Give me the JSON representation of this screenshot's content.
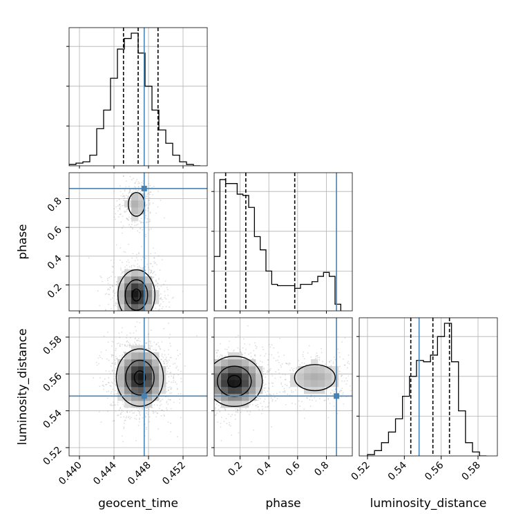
{
  "chart_data": {
    "type": "corner",
    "parameters": [
      "geocent_time",
      "phase",
      "luminosity_distance"
    ],
    "truths": {
      "geocent_time": 0.4475,
      "phase": 0.87,
      "luminosity_distance": 0.548
    },
    "colors": {
      "truth": "#4682b4",
      "hist": "#000000",
      "grid": "#b0b0b0",
      "scatter": "#9a9a9a"
    },
    "grid": true,
    "axes": {
      "geocent_time": {
        "label": "geocent_time",
        "lim": [
          0.4388,
          0.4548
        ],
        "ticks": [
          0.44,
          0.444,
          0.448,
          0.452
        ],
        "tick_labels": [
          "0.440",
          "0.444",
          "0.448",
          "0.452"
        ]
      },
      "phase": {
        "label": "phase",
        "lim": [
          0.02,
          0.98
        ],
        "ticks": [
          0.2,
          0.4,
          0.6,
          0.8
        ],
        "tick_labels": [
          "0.2",
          "0.4",
          "0.6",
          "0.8"
        ]
      },
      "luminosity_distance": {
        "label": "luminosity_distance",
        "lim": [
          0.5155,
          0.5905
        ],
        "ticks": [
          0.52,
          0.54,
          0.56,
          0.58
        ],
        "tick_labels": [
          "0.52",
          "0.54",
          "0.56",
          "0.58"
        ]
      }
    },
    "histograms": {
      "geocent_time": {
        "bin_edges": [
          0.4388,
          0.4396,
          0.4404,
          0.4412,
          0.442,
          0.4428,
          0.4436,
          0.4444,
          0.4452,
          0.446,
          0.4468,
          0.4476,
          0.4484,
          0.4492,
          0.45,
          0.4508,
          0.4516,
          0.4524,
          0.4532,
          0.454
        ],
        "counts": [
          0.01,
          0.02,
          0.03,
          0.08,
          0.28,
          0.42,
          0.66,
          0.88,
          0.96,
          1.0,
          0.85,
          0.6,
          0.42,
          0.27,
          0.17,
          0.08,
          0.03,
          0.01,
          0.0
        ],
        "quantiles": [
          0.4451,
          0.4468,
          0.4491
        ]
      },
      "phase": {
        "bin_edges": [
          0.02,
          0.06,
          0.1,
          0.14,
          0.18,
          0.22,
          0.26,
          0.3,
          0.34,
          0.38,
          0.42,
          0.46,
          0.5,
          0.54,
          0.58,
          0.62,
          0.66,
          0.7,
          0.74,
          0.78,
          0.82,
          0.86,
          0.9
        ],
        "counts": [
          0.41,
          0.99,
          0.96,
          0.96,
          0.88,
          0.87,
          0.78,
          0.56,
          0.46,
          0.3,
          0.2,
          0.19,
          0.19,
          0.19,
          0.17,
          0.2,
          0.2,
          0.22,
          0.26,
          0.29,
          0.26,
          0.05
        ],
        "quantiles": [
          0.1,
          0.24,
          0.58
        ]
      },
      "luminosity_distance": {
        "bin_edges": [
          0.52,
          0.5238,
          0.5276,
          0.5314,
          0.5352,
          0.539,
          0.5428,
          0.5466,
          0.5504,
          0.5542,
          0.558,
          0.5618,
          0.5656,
          0.5694,
          0.5732,
          0.577,
          0.5808,
          0.5846
        ],
        "counts": [
          0.01,
          0.04,
          0.1,
          0.18,
          0.28,
          0.45,
          0.6,
          0.72,
          0.71,
          0.76,
          0.9,
          1.0,
          0.71,
          0.34,
          0.1,
          0.03,
          0.0
        ],
        "quantiles": [
          0.5435,
          0.5555,
          0.5645
        ]
      }
    },
    "density_2d": [
      {
        "x": "geocent_time",
        "y": "phase",
        "peaks": [
          {
            "cx": 0.4466,
            "cy": 0.13,
            "sx": 0.0011,
            "sy": 0.09,
            "w": 1.0
          },
          {
            "cx": 0.4466,
            "cy": 0.76,
            "sx": 0.0008,
            "sy": 0.07,
            "w": 0.3
          }
        ]
      },
      {
        "x": "geocent_time",
        "y": "luminosity_distance",
        "peaks": [
          {
            "cx": 0.447,
            "cy": 0.558,
            "sx": 0.0014,
            "sy": 0.008,
            "w": 1.0
          }
        ]
      },
      {
        "x": "phase",
        "y": "luminosity_distance",
        "peaks": [
          {
            "cx": 0.16,
            "cy": 0.556,
            "sx": 0.1,
            "sy": 0.007,
            "w": 1.0
          },
          {
            "cx": 0.72,
            "cy": 0.558,
            "sx": 0.12,
            "sy": 0.006,
            "w": 0.3
          }
        ]
      }
    ]
  }
}
